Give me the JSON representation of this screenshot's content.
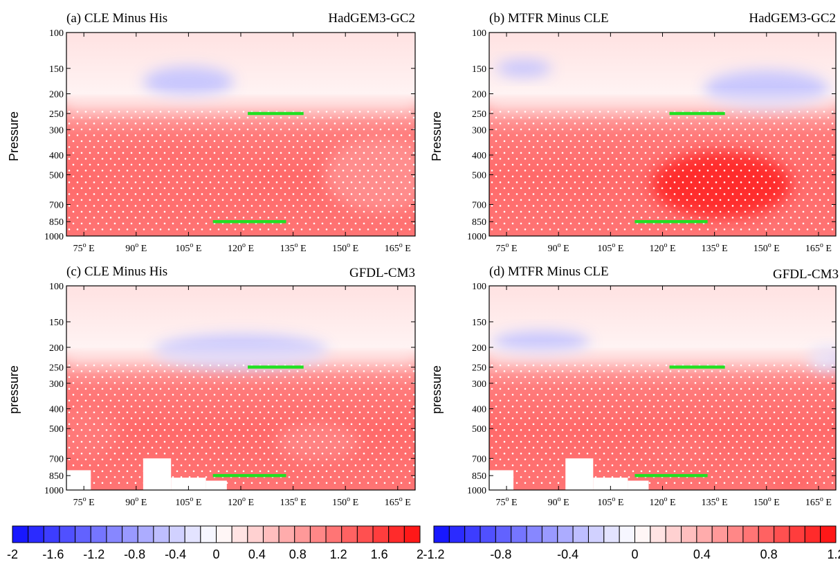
{
  "chart_data": [
    {
      "type": "heatmap",
      "panel_label": "(a) CLE Minus His",
      "model": "HadGEM3-GC2",
      "ylabel": "Pressure",
      "x_ticks": [
        "75",
        "90",
        "105",
        "120",
        "135",
        "150",
        "165"
      ],
      "x_tick_suffix_sup": "o",
      "x_tick_suffix": " E",
      "y_ticks": [
        "100",
        "150",
        "200",
        "250",
        "300",
        "400",
        "500",
        "700",
        "850",
        "1000"
      ],
      "xlim": [
        70,
        170
      ],
      "ylim": [
        1000,
        100
      ],
      "green_bars": [
        {
          "x0": 122,
          "x1": 138,
          "p": 250
        },
        {
          "x0": 112,
          "x1": 133,
          "p": 850
        }
      ],
      "blue_cores": [
        {
          "x": 105,
          "p": 175,
          "rx": 13,
          "rp": 30,
          "v": -0.5
        }
      ],
      "red_cores": [
        {
          "x": 100,
          "p": 520,
          "rx": 24,
          "rp": 180,
          "v": 1.2
        },
        {
          "x": 160,
          "p": 500,
          "rx": 16,
          "rp": 200,
          "v": 0.9
        }
      ]
    },
    {
      "type": "heatmap",
      "panel_label": "(b) MTFR Minus CLE",
      "model": "HadGEM3-GC2",
      "ylabel": "Pressure",
      "x_ticks": [
        "75",
        "90",
        "105",
        "120",
        "135",
        "150",
        "165"
      ],
      "x_tick_suffix_sup": "o",
      "x_tick_suffix": " E",
      "y_ticks": [
        "100",
        "150",
        "200",
        "250",
        "300",
        "400",
        "500",
        "700",
        "850",
        "1000"
      ],
      "xlim": [
        70,
        170
      ],
      "ylim": [
        1000,
        100
      ],
      "green_bars": [
        {
          "x0": 122,
          "x1": 138,
          "p": 250
        },
        {
          "x0": 112,
          "x1": 133,
          "p": 850
        }
      ],
      "blue_cores": [
        {
          "x": 80,
          "p": 150,
          "rx": 8,
          "rp": 15,
          "v": -0.3
        },
        {
          "x": 150,
          "p": 190,
          "rx": 18,
          "rp": 40,
          "v": -0.3
        }
      ],
      "red_cores": [
        {
          "x": 137,
          "p": 560,
          "rx": 20,
          "rp": 200,
          "v": 1.1
        }
      ]
    },
    {
      "type": "heatmap",
      "panel_label": "(c) CLE Minus His",
      "model": "GFDL-CM3",
      "ylabel": "pressure",
      "x_ticks": [
        "75",
        "90",
        "105",
        "120",
        "135",
        "150",
        "165"
      ],
      "x_tick_suffix_sup": "o",
      "x_tick_suffix": " E",
      "y_ticks": [
        "100",
        "150",
        "200",
        "250",
        "300",
        "400",
        "500",
        "700",
        "850",
        "1000"
      ],
      "xlim": [
        70,
        170
      ],
      "ylim": [
        1000,
        100
      ],
      "green_bars": [
        {
          "x0": 122,
          "x1": 138,
          "p": 250
        },
        {
          "x0": 112,
          "x1": 133,
          "p": 850
        }
      ],
      "blue_cores": [
        {
          "x": 120,
          "p": 210,
          "rx": 25,
          "rp": 40,
          "v": -0.5
        }
      ],
      "red_cores": [
        {
          "x": 75,
          "p": 520,
          "rx": 10,
          "rp": 150,
          "v": 1.1
        },
        {
          "x": 142,
          "p": 580,
          "rx": 12,
          "rp": 120,
          "v": 1.0
        }
      ]
    },
    {
      "type": "heatmap",
      "panel_label": "(d) MTFR Minus CLE",
      "model": "GFDL-CM3",
      "ylabel": "pressure",
      "x_ticks": [
        "75",
        "90",
        "105",
        "120",
        "135",
        "150",
        "165"
      ],
      "x_tick_suffix_sup": "o",
      "x_tick_suffix": " E",
      "y_ticks": [
        "100",
        "150",
        "200",
        "250",
        "300",
        "400",
        "500",
        "700",
        "850",
        "1000"
      ],
      "xlim": [
        70,
        170
      ],
      "ylim": [
        1000,
        100
      ],
      "green_bars": [
        {
          "x0": 122,
          "x1": 138,
          "p": 250
        },
        {
          "x0": 112,
          "x1": 133,
          "p": 850
        }
      ],
      "blue_cores": [
        {
          "x": 85,
          "p": 190,
          "rx": 14,
          "rp": 25,
          "v": -0.3
        },
        {
          "x": 168,
          "p": 230,
          "rx": 6,
          "rp": 30,
          "v": -0.2
        }
      ],
      "red_cores": [
        {
          "x": 125,
          "p": 650,
          "rx": 10,
          "rp": 120,
          "v": 0.7
        },
        {
          "x": 158,
          "p": 900,
          "rx": 6,
          "rp": 60,
          "v": 0.8
        }
      ]
    }
  ],
  "colorbars": [
    {
      "labels": [
        "-2",
        "-1.6",
        "-1.2",
        "-0.8",
        "-0.4",
        "0",
        "0.4",
        "0.8",
        "1.2",
        "1.6",
        "2"
      ],
      "min": -2,
      "max": 2,
      "boxes": 26
    },
    {
      "labels": [
        "-1.2",
        "-0.8",
        "-0.4",
        "0",
        "0.4",
        "0.8",
        "1.2"
      ],
      "min": -1.2,
      "max": 1.2,
      "boxes": 26
    }
  ]
}
